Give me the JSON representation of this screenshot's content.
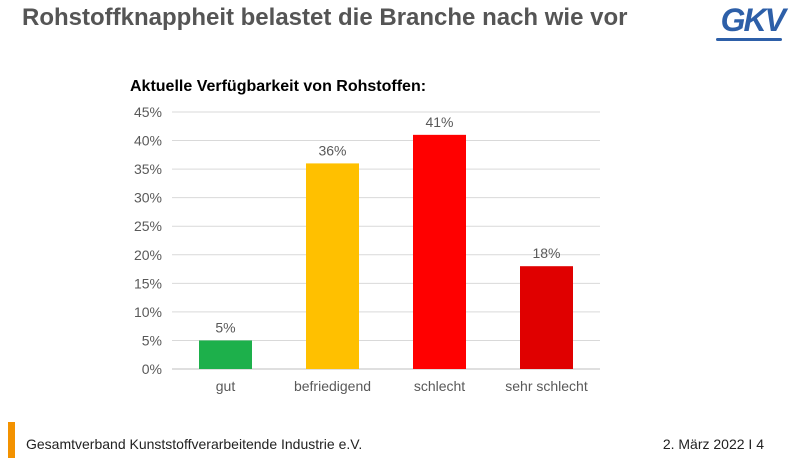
{
  "slide": {
    "title": "Rohstoffknappheit belastet die Branche nach wie vor",
    "logo_text": "GKV"
  },
  "footer": {
    "organization": "Gesamtverband Kunststoffverarbeitende Industrie e.V.",
    "date_page": "2. März 2022 I 4"
  },
  "chart_data": {
    "type": "bar",
    "title": "Aktuelle Verfügbarkeit von Rohstoffen:",
    "categories": [
      "gut",
      "befriedigend",
      "schlecht",
      "sehr schlecht"
    ],
    "values": [
      5,
      36,
      41,
      18
    ],
    "data_labels": [
      "5%",
      "36%",
      "41%",
      "18%"
    ],
    "colors": [
      "#1db04b",
      "#ffc000",
      "#ff0000",
      "#e00000"
    ],
    "ylim": [
      0,
      45
    ],
    "yticks": [
      0,
      5,
      10,
      15,
      20,
      25,
      30,
      35,
      40,
      45
    ],
    "ytick_labels": [
      "0%",
      "5%",
      "10%",
      "15%",
      "20%",
      "25%",
      "30%",
      "35%",
      "40%",
      "45%"
    ],
    "grid": true,
    "legend": "none",
    "xlabel": "",
    "ylabel": ""
  },
  "colors": {
    "accent": "#f39200",
    "brand": "#2d5fa8",
    "title_gray": "#555555",
    "grid": "#d9d9d9"
  }
}
